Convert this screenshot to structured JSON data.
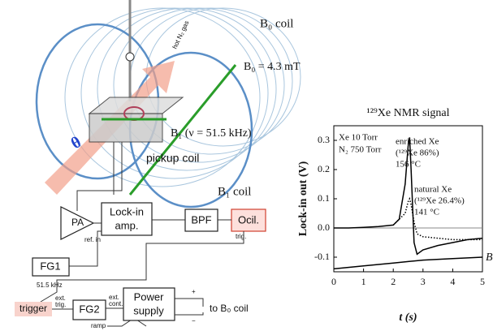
{
  "diagram": {
    "labels": {
      "b0_coil": "B₀ coil",
      "b0_value": "B₀ = 4.3 mT",
      "hot_gas": "hot N₂ gas",
      "b1_field": "B₁ (ν = 51.5 kHz)",
      "pickup": "pickup coil",
      "b1_coil": "B₁ coil",
      "theta": "θ",
      "pa": "PA",
      "lockin": "Lock-in",
      "amp": "amp.",
      "ref_in": "ref. in",
      "bpf": "BPF",
      "ocil": "Ocil.",
      "trig": "trig.",
      "fg1": "FG1",
      "fg1_freq": "51.5 kHz",
      "trigger": "trigger",
      "ext": "ext.",
      "ext_trig": "trig.",
      "fg2": "FG2",
      "ext2": "ext.",
      "ext_cont": "cont.",
      "power": "Power",
      "supply": "supply",
      "to_b0": "to B₀ coil",
      "ramp": "ramp",
      "plus": "+",
      "minus": "−"
    }
  },
  "chart_data": {
    "type": "line",
    "title": "¹²⁹Xe NMR signal",
    "x_label": "t (s)",
    "y_label": "Lock-in out (V)",
    "xlim": [
      0,
      5
    ],
    "xticks": [
      0,
      1,
      2,
      3,
      4,
      5
    ],
    "ylim": [
      -0.15,
      0.35
    ],
    "yticks": [
      -0.1,
      {
        "value": 0,
        "label": "0.0"
      },
      0.1,
      0.2,
      0.3
    ],
    "zero_line": true,
    "annotations": [
      "Xe 10 Torr",
      "N₂ 750 Torr",
      "(¹²⁹Xe 86%)",
      "156 °C",
      "(¹²⁹Xe 26.4%)",
      "141 °C"
    ],
    "series": [
      {
        "name": "enriched Xe",
        "color": "#000000",
        "dash": "solid",
        "x": [
          0,
          0.5,
          1,
          1.5,
          2,
          2.2,
          2.4,
          2.5,
          2.55,
          2.6,
          2.7,
          2.8,
          3,
          3.5,
          4,
          4.5,
          5
        ],
        "values": [
          0,
          0,
          0.002,
          0.005,
          0.01,
          0.03,
          0.15,
          0.28,
          0.31,
          0.2,
          -0.05,
          -0.09,
          -0.075,
          -0.06,
          -0.05,
          -0.04,
          -0.035
        ]
      },
      {
        "name": "natural Xe",
        "color": "#000000",
        "dash": "dotted",
        "x": [
          2,
          2.2,
          2.4,
          2.5,
          2.55,
          2.6,
          2.7,
          2.8,
          3,
          3.5,
          4,
          4.5,
          5
        ],
        "values": [
          0.01,
          0.03,
          0.05,
          0.09,
          0.1,
          0.08,
          0.02,
          -0.02,
          -0.03,
          -0.035,
          -0.04,
          -0.04,
          -0.04
        ]
      },
      {
        "name": "B",
        "color": "#000000",
        "dash": "solid",
        "x": [
          0,
          1,
          2,
          2.5,
          3,
          4,
          5
        ],
        "values": [
          -0.14,
          -0.13,
          -0.12,
          -0.115,
          -0.11,
          -0.105,
          -0.1
        ]
      }
    ]
  }
}
